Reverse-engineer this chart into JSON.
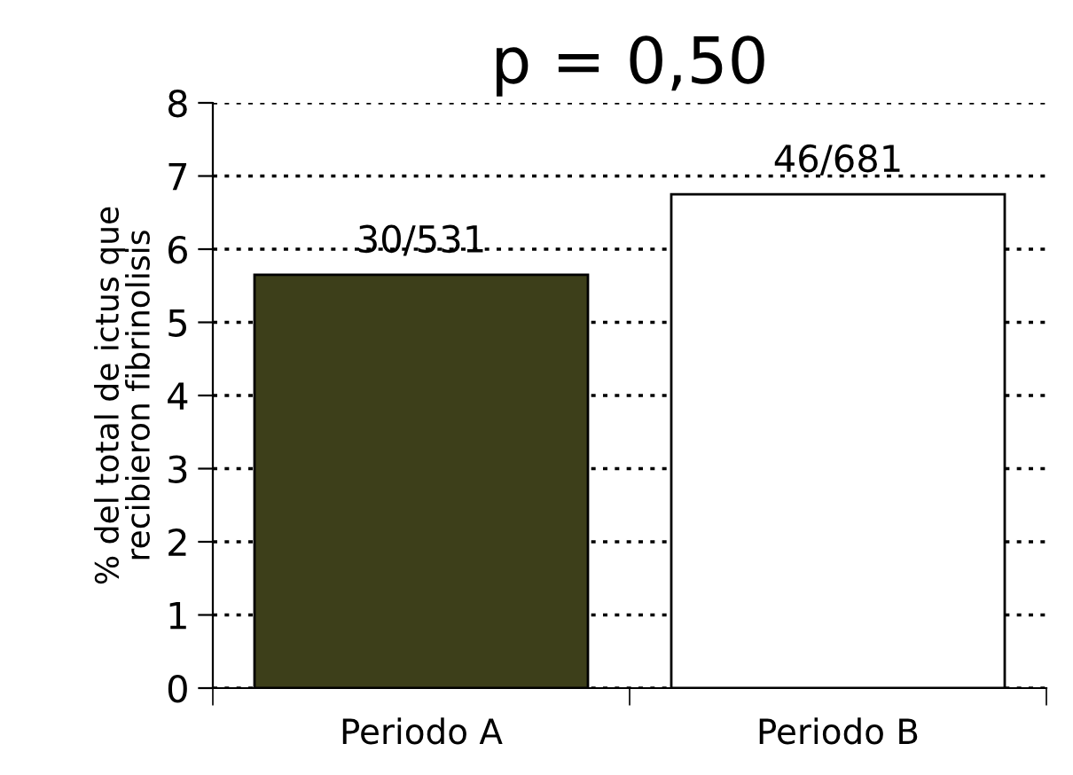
{
  "chart_data": {
    "type": "bar",
    "title": "p = 0,50",
    "ylabel": "% del total de ictus que\nrecibieron fibrinolisis",
    "categories": [
      "Periodo A",
      "Periodo B"
    ],
    "values": [
      5.65,
      6.75
    ],
    "colors": [
      "#3d3f1a",
      "#ffffff"
    ],
    "value_labels": [
      "30/531",
      "46/681"
    ],
    "ylim": [
      0,
      8
    ],
    "yticks": [
      0,
      1,
      2,
      3,
      4,
      5,
      6,
      7,
      8
    ],
    "grid": "y",
    "legend": false
  }
}
